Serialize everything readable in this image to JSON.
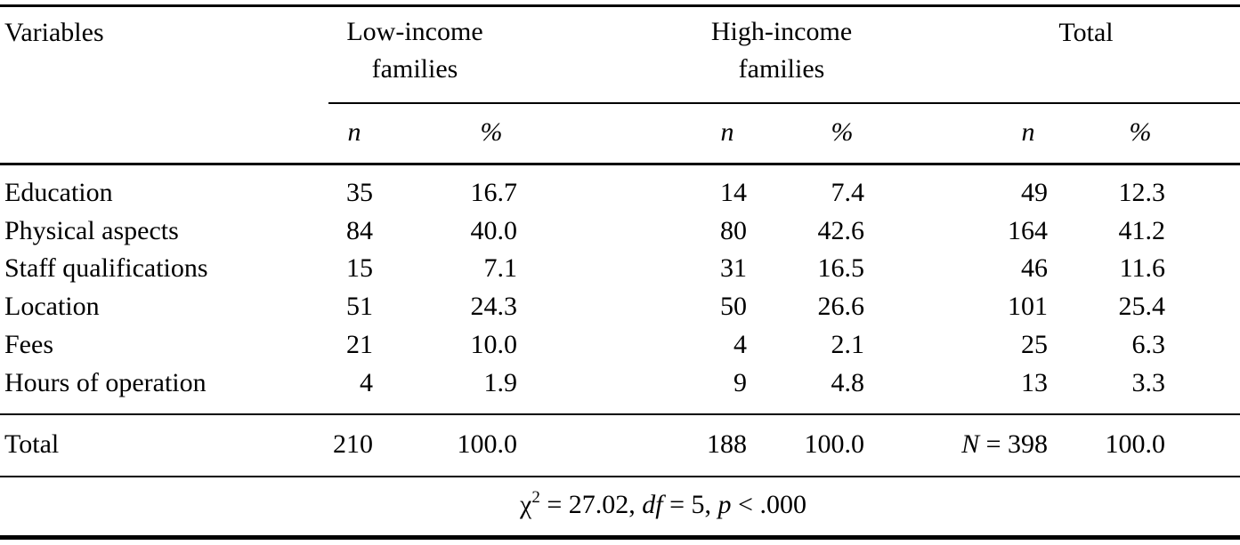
{
  "headers": {
    "variables": "Variables",
    "low": {
      "line1": "Low-income",
      "line2": "families"
    },
    "high": {
      "line1": "High-income",
      "line2": "families"
    },
    "total": "Total",
    "n": "n",
    "pct": "%"
  },
  "rows": [
    {
      "label": "Education",
      "low_n": "35",
      "low_pct": "16.7",
      "high_n": "14",
      "high_pct": "7.4",
      "tot_n": "49",
      "tot_pct": "12.3"
    },
    {
      "label": "Physical aspects",
      "low_n": "84",
      "low_pct": "40.0",
      "high_n": "80",
      "high_pct": "42.6",
      "tot_n": "164",
      "tot_pct": "41.2"
    },
    {
      "label": "Staff qualifications",
      "low_n": "15",
      "low_pct": "7.1",
      "high_n": "31",
      "high_pct": "16.5",
      "tot_n": "46",
      "tot_pct": "11.6"
    },
    {
      "label": "Location",
      "low_n": "51",
      "low_pct": "24.3",
      "high_n": "50",
      "high_pct": "26.6",
      "tot_n": "101",
      "tot_pct": "25.4"
    },
    {
      "label": "Fees",
      "low_n": "21",
      "low_pct": "10.0",
      "high_n": "4",
      "high_pct": "2.1",
      "tot_n": "25",
      "tot_pct": "6.3"
    },
    {
      "label": "Hours of operation",
      "low_n": "4",
      "low_pct": "1.9",
      "high_n": "9",
      "high_pct": "4.8",
      "tot_n": "13",
      "tot_pct": "3.3"
    }
  ],
  "total_row": {
    "label": "Total",
    "low_n": "210",
    "low_pct": "100.0",
    "high_n": "188",
    "high_pct": "100.0",
    "tot_n_prefix": "N",
    "tot_n_value": " = 398",
    "tot_pct": "100.0"
  },
  "footer": {
    "chi": "χ",
    "chi_sup": "2",
    "stat": " = 27.02, ",
    "df_label": "df",
    "df_value": " = 5, ",
    "p_label": "p",
    "p_value": " < .000"
  }
}
